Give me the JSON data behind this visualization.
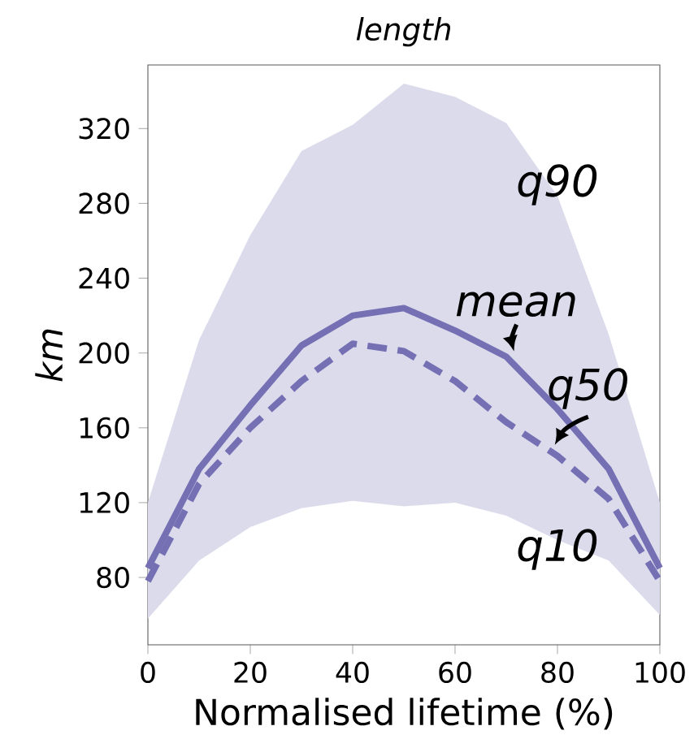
{
  "chart_data": {
    "type": "line",
    "title": "length",
    "xlabel": "Normalised lifetime (%)",
    "ylabel": "km",
    "x": [
      0,
      10,
      20,
      30,
      40,
      50,
      60,
      70,
      80,
      90,
      100
    ],
    "series": [
      {
        "color": "#7470b3",
        "line_style": "solid",
        "values": [
          85,
          138,
          172,
          204,
          220,
          224,
          212,
          198,
          170,
          138,
          85
        ],
        "lower": [
          58,
          89,
          107,
          117,
          121,
          118,
          120,
          113,
          100,
          89,
          60
        ],
        "upper": [
          120,
          207,
          263,
          308,
          322,
          344,
          337,
          323,
          284,
          210,
          120
        ]
      },
      {
        "color": "#7470b3",
        "line_style": "dashed",
        "values": [
          78,
          130,
          160,
          185,
          205,
          201,
          185,
          163,
          145,
          122,
          78
        ]
      }
    ],
    "annotations": [
      "q90",
      {
        "text": "mean",
        "x": 70,
        "y": 198
      },
      {
        "text": "q50",
        "x": 78,
        "y": 148
      },
      "q10"
    ],
    "xlim": [
      0,
      100
    ],
    "ylim": [
      44,
      354
    ],
    "xticks": [
      0,
      20,
      40,
      60,
      80,
      100
    ],
    "yticks": [
      80,
      120,
      160,
      200,
      240,
      280,
      320
    ],
    "grid": false,
    "marker": "none"
  }
}
